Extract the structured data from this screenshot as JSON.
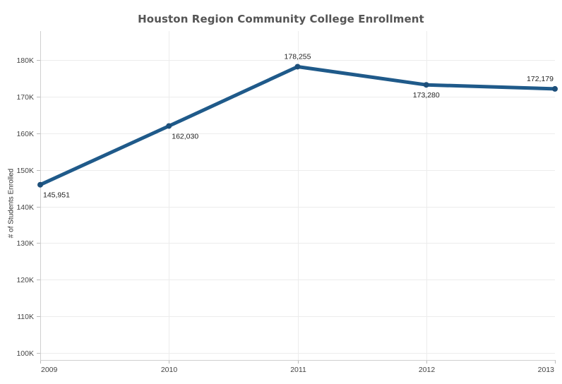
{
  "chart_data": {
    "type": "line",
    "title": "Houston Region Community College Enrollment",
    "xlabel": "",
    "ylabel": "# of Students Enrolled",
    "x": [
      "2009",
      "2010",
      "2011",
      "2012",
      "2013"
    ],
    "series": [
      {
        "values": [
          145951,
          162030,
          178255,
          173280,
          172179
        ]
      }
    ],
    "data_labels": [
      "145,951",
      "162,030",
      "178,255",
      "173,280",
      "172,179"
    ],
    "data_label_placement": [
      "below",
      "below",
      "above",
      "below",
      "above"
    ],
    "ylim": [
      98000,
      188000
    ],
    "y_ticks": [
      100000,
      110000,
      120000,
      130000,
      140000,
      150000,
      160000,
      170000,
      180000
    ],
    "y_tick_labels": [
      "100K",
      "110K",
      "120K",
      "130K",
      "140K",
      "150K",
      "160K",
      "170K",
      "180K"
    ],
    "grid": true,
    "line_color": "#1f5a8a"
  }
}
